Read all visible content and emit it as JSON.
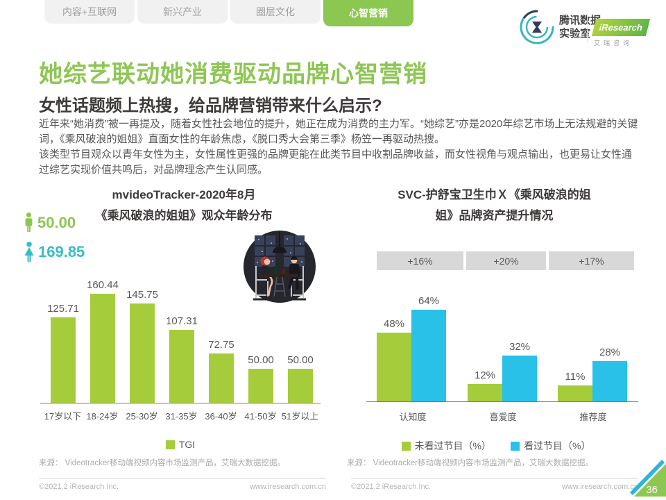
{
  "tabs": [
    {
      "label": "内容+互联网",
      "active": false
    },
    {
      "label": "新兴产业",
      "active": false
    },
    {
      "label": "圈层文化",
      "active": false
    },
    {
      "label": "心智营销",
      "active": true
    }
  ],
  "logos": {
    "tencent": {
      "line1": "腾讯数据",
      "line2": "实验室"
    },
    "iresearch": {
      "name": "iResearch",
      "subtitle": "艾瑞咨询"
    }
  },
  "title": "她综艺联动她消费驱动品牌心智营销",
  "subtitle": "女性话题频上热搜，给品牌营销带来什么启示?",
  "paragraphs": {
    "p1": "近年来“她消费”被一再提及，随着女性社会地位的提升，她正在成为消费的主力军。“她综艺”亦是2020年综艺市场上无法规避的关键词，《乘风破浪的姐姐》直面女性的年龄焦虑，《脱口秀大会第三季》杨笠一再驱动热搜。",
    "p2": "该类型节目观众以青年女性为主，女性属性更强的品牌更能在此类节目中收割品牌收益，而女性视角与观点输出，也更易让女性通过综艺实现价值共鸣后，对品牌理念产生认同感。"
  },
  "chart_data": [
    {
      "type": "bar",
      "title_line1": "mvideoTracker-2020年8月",
      "title_line2": "《乘风破浪的姐姐》观众年龄分布",
      "categories": [
        "17岁以下",
        "18-24岁",
        "25-30岁",
        "31-35岁",
        "36-40岁",
        "41-50岁",
        "51岁以上"
      ],
      "values": [
        125.71,
        160.44,
        145.75,
        107.31,
        72.75,
        50.0,
        50.0
      ],
      "value_labels": [
        "125.71",
        "160.44",
        "145.75",
        "107.31",
        "72.75",
        "50.00",
        "50.00"
      ],
      "ylim": [
        0,
        170
      ],
      "grid": false,
      "legend_position": "bottom",
      "legend": [
        {
          "label": "TGI",
          "color": "#a5cc3a"
        }
      ],
      "bar_color": "#a5cc3a",
      "annotations": [
        {
          "icon": "male-figure",
          "value_label": "50.00",
          "color": "#8ec653"
        },
        {
          "icon": "female-figure",
          "value_label": "169.85",
          "color": "#38bdc4"
        }
      ],
      "source": "来源： Videotracker移动端视频内容市场监测产品，艾瑞大数据挖掘。"
    },
    {
      "type": "bar",
      "title_line1": "SVC-护舒宝卫生巾Ｘ《乘风破浪的姐",
      "title_line2": "姐》品牌资产提升情况",
      "categories": [
        "认知度",
        "喜爱度",
        "推荐度"
      ],
      "uplift_labels": [
        "+16%",
        "+20%",
        "+17%"
      ],
      "series": [
        {
          "name": "未看过节目（%）",
          "color": "#a5cc3a",
          "values": [
            48,
            12,
            11
          ],
          "value_labels": [
            "48%",
            "12%",
            "11%"
          ]
        },
        {
          "name": "看过节目（%）",
          "color": "#29c1e8",
          "values": [
            64,
            32,
            28
          ],
          "value_labels": [
            "64%",
            "32%",
            "28%"
          ]
        }
      ],
      "ylim": [
        0,
        70
      ],
      "grid": false,
      "legend_position": "bottom",
      "source": "来源： Videotracker移动端视频内容市场监测产品，艾瑞大数据挖掘。"
    }
  ],
  "footers": {
    "left": {
      "copyright": "©2021.2 iResearch Inc.",
      "url": "www.iresearch.com.cn"
    },
    "right": {
      "copyright": "©2021.2 iResearch Inc.",
      "url": "www.iresearch.com.cn"
    }
  },
  "page_number": "36",
  "colors": {
    "accent_green": "#8cc751",
    "bar_green": "#a5cc3a",
    "bar_blue": "#29c1e8",
    "stat_teal": "#38bdc4",
    "title_green": "#8ec653"
  }
}
